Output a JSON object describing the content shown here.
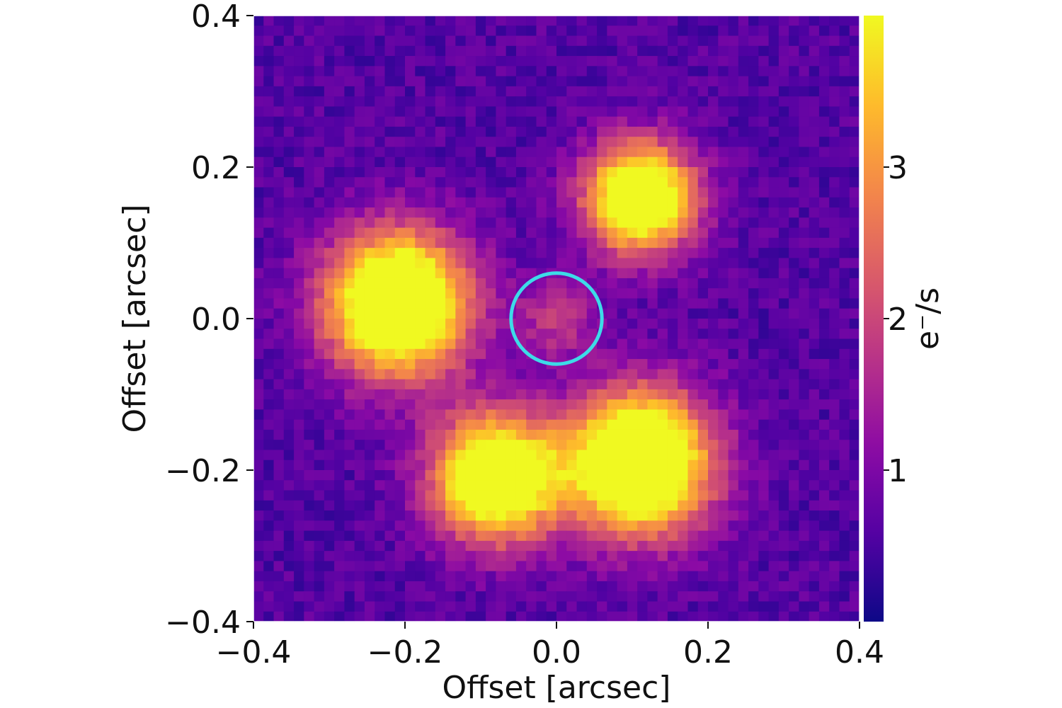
{
  "chart_data": {
    "type": "heatmap",
    "colormap": "plasma",
    "colormap_stops": [
      "#0d0887",
      "#5302a3",
      "#8b0aa5",
      "#b83289",
      "#db5c68",
      "#f48849",
      "#febd2a",
      "#f0f921"
    ],
    "xlabel": "Offset [arcsec]",
    "ylabel": "Offset [arcsec]",
    "xlim": [
      -0.4,
      0.4
    ],
    "ylim": [
      -0.4,
      0.4
    ],
    "xticks": [
      -0.4,
      -0.2,
      0.0,
      0.2,
      0.4
    ],
    "yticks": [
      -0.4,
      -0.2,
      0.0,
      0.2,
      0.4
    ],
    "xtick_labels": [
      "−0.4",
      "−0.2",
      "0.0",
      "0.2",
      "0.4"
    ],
    "ytick_labels": [
      "−0.4",
      "−0.2",
      "0.0",
      "0.2",
      "0.4"
    ],
    "colorbar": {
      "label": "e⁻/s",
      "range": [
        0.0,
        4.0
      ],
      "ticks": [
        1,
        2,
        3
      ],
      "tick_labels": [
        "1",
        "2",
        "3"
      ]
    },
    "background_level": 0.6,
    "sources": [
      {
        "x": -0.21,
        "y": 0.02,
        "peak": 5.5,
        "sigma": 0.065
      },
      {
        "x": 0.11,
        "y": 0.16,
        "peak": 5.0,
        "sigma": 0.05
      },
      {
        "x": -0.08,
        "y": -0.21,
        "peak": 5.0,
        "sigma": 0.058
      },
      {
        "x": 0.11,
        "y": -0.19,
        "peak": 5.5,
        "sigma": 0.065
      },
      {
        "x": 0.0,
        "y": 0.0,
        "peak": 1.2,
        "sigma": 0.035
      }
    ],
    "marker": {
      "shape": "circle",
      "x": 0.0,
      "y": 0.0,
      "radius": 0.06,
      "color": "#3ddbe8"
    }
  }
}
